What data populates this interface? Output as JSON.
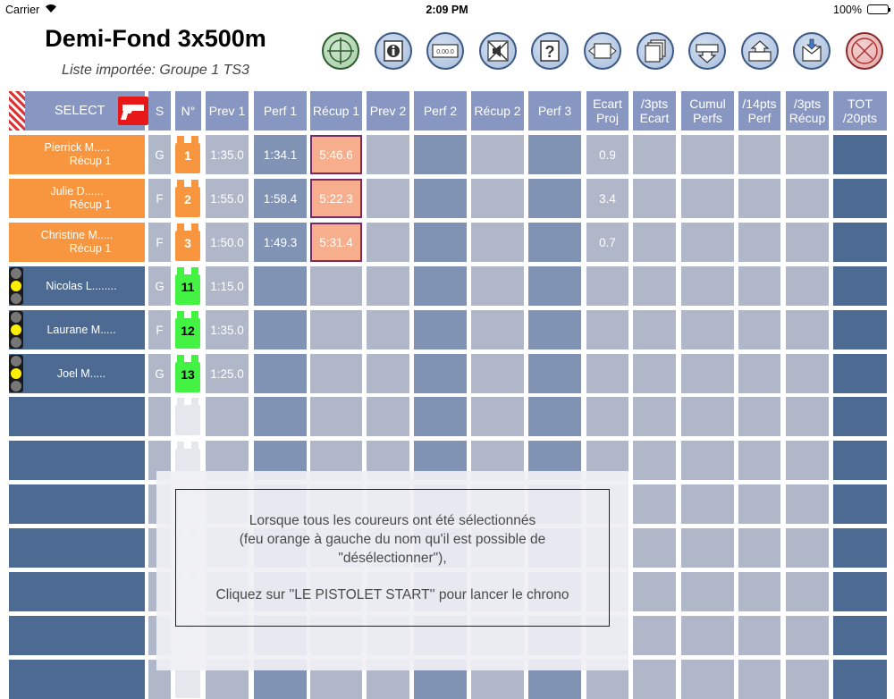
{
  "status": {
    "carrier": "Carrier",
    "time": "2:09 PM",
    "battery": "100%"
  },
  "header": {
    "title": "Demi-Fond 3x500m",
    "subtitle": "Liste importée: Groupe 1 TS3"
  },
  "toolbar": [
    {
      "name": "target-icon",
      "style": "green"
    },
    {
      "name": "info-icon",
      "style": "blue"
    },
    {
      "name": "counter-icon",
      "style": "blue",
      "text": "0.00.0"
    },
    {
      "name": "mute-icon",
      "style": "blue"
    },
    {
      "name": "help-icon",
      "style": "blue"
    },
    {
      "name": "swap-icon",
      "style": "blue"
    },
    {
      "name": "pages-icon",
      "style": "blue"
    },
    {
      "name": "download-icon",
      "style": "blue"
    },
    {
      "name": "upload-icon",
      "style": "blue"
    },
    {
      "name": "inbox-icon",
      "style": "blue"
    },
    {
      "name": "close-icon",
      "style": "red"
    }
  ],
  "table": {
    "select_label": "SELECT",
    "headers": [
      "S",
      "N°",
      "Prev 1",
      "Perf 1",
      "Récup 1",
      "Prev 2",
      "Perf 2",
      "Récup 2",
      "Perf 3",
      "Ecart Proj",
      "/3pts Ecart",
      "Cumul Perfs",
      "/14pts Perf",
      "/3pts Récup",
      "TOT /20pts"
    ],
    "rows": [
      {
        "name": "Pierrick M.....",
        "sub": "Récup 1",
        "state": "running",
        "sex": "G",
        "bib": "1",
        "prev1": "1:35.0",
        "perf1": "1:34.1",
        "recup1": "5:46.6",
        "ecart": "0.9"
      },
      {
        "name": "Julie D......",
        "sub": "Récup 1",
        "state": "running",
        "sex": "F",
        "bib": "2",
        "prev1": "1:55.0",
        "perf1": "1:58.4",
        "recup1": "5:22.3",
        "ecart": "3.4"
      },
      {
        "name": "Christine M.....",
        "sub": "Récup 1",
        "state": "running",
        "sex": "F",
        "bib": "3",
        "prev1": "1:50.0",
        "perf1": "1:49.3",
        "recup1": "5:31.4",
        "ecart": "0.7"
      },
      {
        "name": "Nicolas L........",
        "sub": "",
        "state": "selected",
        "sex": "G",
        "bib": "11",
        "prev1": "1:15.0",
        "perf1": "",
        "recup1": "",
        "ecart": ""
      },
      {
        "name": "Laurane M.....",
        "sub": "",
        "state": "selected",
        "sex": "F",
        "bib": "12",
        "prev1": "1:35.0",
        "perf1": "",
        "recup1": "",
        "ecart": ""
      },
      {
        "name": "Joel M.....",
        "sub": "",
        "state": "selected",
        "sex": "G",
        "bib": "13",
        "prev1": "1:25.0",
        "perf1": "",
        "recup1": "",
        "ecart": ""
      }
    ],
    "empty_rows": 7
  },
  "modal": {
    "line1": "Lorsque tous les coureurs ont été sélectionnés",
    "line2": "(feu orange à gauche du nom qu'il est possible de",
    "line3": "\"désélectionner\"),",
    "line4": "Cliquez sur ''LE PISTOLET START'' pour lancer le chrono"
  },
  "colors": {
    "header": "#8897c2",
    "name_dark": "#4d6b92",
    "running": "#f7963f",
    "col_light": "#afb7c9",
    "col_mid": "#8093b4",
    "col_tot": "#4d6b92",
    "bib_running": "#f7963f",
    "bib_selected": "#44f244",
    "bib_empty": "#e5e7ed",
    "recup_fill": "#f6ae8c",
    "recup_border": "#7a2a62"
  }
}
